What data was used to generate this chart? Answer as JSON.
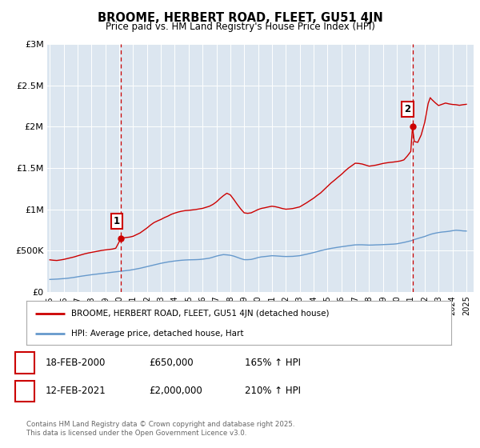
{
  "title": "BROOME, HERBERT ROAD, FLEET, GU51 4JN",
  "subtitle": "Price paid vs. HM Land Registry's House Price Index (HPI)",
  "background_color": "#ffffff",
  "plot_background": "#dce6f0",
  "grid_color": "#ffffff",
  "xlim": [
    1994.8,
    2025.5
  ],
  "ylim": [
    0,
    3000000
  ],
  "yticks": [
    0,
    500000,
    1000000,
    1500000,
    2000000,
    2500000,
    3000000
  ],
  "ytick_labels": [
    "£0",
    "£500K",
    "£1M",
    "£1.5M",
    "£2M",
    "£2.5M",
    "£3M"
  ],
  "xticks": [
    1995,
    1996,
    1997,
    1998,
    1999,
    2000,
    2001,
    2002,
    2003,
    2004,
    2005,
    2006,
    2007,
    2008,
    2009,
    2010,
    2011,
    2012,
    2013,
    2014,
    2015,
    2016,
    2017,
    2018,
    2019,
    2020,
    2021,
    2022,
    2023,
    2024,
    2025
  ],
  "red_line_color": "#cc0000",
  "blue_line_color": "#6699cc",
  "vline_color": "#cc0000",
  "marker1_x": 2000.13,
  "marker1_y": 650000,
  "marker2_x": 2021.12,
  "marker2_y": 2000000,
  "annotation1": "1",
  "annotation2": "2",
  "legend_label_red": "BROOME, HERBERT ROAD, FLEET, GU51 4JN (detached house)",
  "legend_label_blue": "HPI: Average price, detached house, Hart",
  "table_row1": [
    "1",
    "18-FEB-2000",
    "£650,000",
    "165% ↑ HPI"
  ],
  "table_row2": [
    "2",
    "12-FEB-2021",
    "£2,000,000",
    "210% ↑ HPI"
  ],
  "footer_text": "Contains HM Land Registry data © Crown copyright and database right 2025.\nThis data is licensed under the Open Government Licence v3.0.",
  "red_hpi_data": [
    [
      1995.0,
      390000
    ],
    [
      1995.25,
      385000
    ],
    [
      1995.5,
      382000
    ],
    [
      1995.75,
      388000
    ],
    [
      1996.0,
      395000
    ],
    [
      1996.25,
      405000
    ],
    [
      1996.5,
      415000
    ],
    [
      1996.75,
      425000
    ],
    [
      1997.0,
      438000
    ],
    [
      1997.25,
      450000
    ],
    [
      1997.5,
      462000
    ],
    [
      1997.75,
      472000
    ],
    [
      1998.0,
      480000
    ],
    [
      1998.25,
      488000
    ],
    [
      1998.5,
      496000
    ],
    [
      1998.75,
      504000
    ],
    [
      1999.0,
      510000
    ],
    [
      1999.25,
      515000
    ],
    [
      1999.5,
      520000
    ],
    [
      1999.75,
      530000
    ],
    [
      2000.13,
      650000
    ],
    [
      2000.5,
      660000
    ],
    [
      2000.75,
      665000
    ],
    [
      2001.0,
      675000
    ],
    [
      2001.25,
      695000
    ],
    [
      2001.5,
      715000
    ],
    [
      2001.75,
      745000
    ],
    [
      2002.0,
      775000
    ],
    [
      2002.25,
      810000
    ],
    [
      2002.5,
      840000
    ],
    [
      2002.75,
      860000
    ],
    [
      2003.0,
      878000
    ],
    [
      2003.25,
      900000
    ],
    [
      2003.5,
      918000
    ],
    [
      2003.75,
      940000
    ],
    [
      2004.0,
      955000
    ],
    [
      2004.25,
      968000
    ],
    [
      2004.5,
      978000
    ],
    [
      2004.75,
      985000
    ],
    [
      2005.0,
      988000
    ],
    [
      2005.25,
      993000
    ],
    [
      2005.5,
      998000
    ],
    [
      2005.75,
      1005000
    ],
    [
      2006.0,
      1012000
    ],
    [
      2006.25,
      1025000
    ],
    [
      2006.5,
      1038000
    ],
    [
      2006.75,
      1060000
    ],
    [
      2007.0,
      1090000
    ],
    [
      2007.25,
      1130000
    ],
    [
      2007.5,
      1165000
    ],
    [
      2007.75,
      1195000
    ],
    [
      2008.0,
      1175000
    ],
    [
      2008.25,
      1120000
    ],
    [
      2008.5,
      1060000
    ],
    [
      2008.75,
      1005000
    ],
    [
      2009.0,
      958000
    ],
    [
      2009.25,
      952000
    ],
    [
      2009.5,
      958000
    ],
    [
      2009.75,
      978000
    ],
    [
      2010.0,
      998000
    ],
    [
      2010.25,
      1012000
    ],
    [
      2010.5,
      1020000
    ],
    [
      2010.75,
      1030000
    ],
    [
      2011.0,
      1038000
    ],
    [
      2011.25,
      1032000
    ],
    [
      2011.5,
      1022000
    ],
    [
      2011.75,
      1010000
    ],
    [
      2012.0,
      1002000
    ],
    [
      2012.25,
      1005000
    ],
    [
      2012.5,
      1010000
    ],
    [
      2012.75,
      1020000
    ],
    [
      2013.0,
      1030000
    ],
    [
      2013.25,
      1055000
    ],
    [
      2013.5,
      1080000
    ],
    [
      2013.75,
      1108000
    ],
    [
      2014.0,
      1135000
    ],
    [
      2014.25,
      1168000
    ],
    [
      2014.5,
      1198000
    ],
    [
      2014.75,
      1238000
    ],
    [
      2015.0,
      1278000
    ],
    [
      2015.25,
      1318000
    ],
    [
      2015.5,
      1352000
    ],
    [
      2015.75,
      1388000
    ],
    [
      2016.0,
      1422000
    ],
    [
      2016.25,
      1462000
    ],
    [
      2016.5,
      1498000
    ],
    [
      2016.75,
      1528000
    ],
    [
      2017.0,
      1558000
    ],
    [
      2017.25,
      1555000
    ],
    [
      2017.5,
      1548000
    ],
    [
      2017.75,
      1535000
    ],
    [
      2018.0,
      1522000
    ],
    [
      2018.25,
      1528000
    ],
    [
      2018.5,
      1535000
    ],
    [
      2018.75,
      1545000
    ],
    [
      2019.0,
      1555000
    ],
    [
      2019.25,
      1562000
    ],
    [
      2019.5,
      1568000
    ],
    [
      2019.75,
      1572000
    ],
    [
      2020.0,
      1578000
    ],
    [
      2020.25,
      1585000
    ],
    [
      2020.5,
      1598000
    ],
    [
      2020.75,
      1645000
    ],
    [
      2021.0,
      1700000
    ],
    [
      2021.12,
      2000000
    ],
    [
      2021.25,
      1820000
    ],
    [
      2021.5,
      1810000
    ],
    [
      2021.75,
      1900000
    ],
    [
      2022.0,
      2050000
    ],
    [
      2022.25,
      2280000
    ],
    [
      2022.4,
      2350000
    ],
    [
      2022.5,
      2330000
    ],
    [
      2022.75,
      2290000
    ],
    [
      2023.0,
      2255000
    ],
    [
      2023.25,
      2270000
    ],
    [
      2023.5,
      2285000
    ],
    [
      2023.75,
      2275000
    ],
    [
      2024.0,
      2268000
    ],
    [
      2024.25,
      2265000
    ],
    [
      2024.5,
      2258000
    ],
    [
      2024.75,
      2265000
    ],
    [
      2025.0,
      2270000
    ]
  ],
  "blue_hpi_data": [
    [
      1995.0,
      153000
    ],
    [
      1995.25,
      155000
    ],
    [
      1995.5,
      157000
    ],
    [
      1995.75,
      160000
    ],
    [
      1996.0,
      163000
    ],
    [
      1996.25,
      167000
    ],
    [
      1996.5,
      172000
    ],
    [
      1996.75,
      178000
    ],
    [
      1997.0,
      185000
    ],
    [
      1997.25,
      192000
    ],
    [
      1997.5,
      198000
    ],
    [
      1997.75,
      204000
    ],
    [
      1998.0,
      210000
    ],
    [
      1998.25,
      215000
    ],
    [
      1998.5,
      220000
    ],
    [
      1998.75,
      225000
    ],
    [
      1999.0,
      230000
    ],
    [
      1999.25,
      235000
    ],
    [
      1999.5,
      240000
    ],
    [
      1999.75,
      245000
    ],
    [
      2000.0,
      250000
    ],
    [
      2000.25,
      255000
    ],
    [
      2000.5,
      260000
    ],
    [
      2000.75,
      265000
    ],
    [
      2001.0,
      272000
    ],
    [
      2001.25,
      280000
    ],
    [
      2001.5,
      288000
    ],
    [
      2001.75,
      298000
    ],
    [
      2002.0,
      308000
    ],
    [
      2002.25,
      318000
    ],
    [
      2002.5,
      328000
    ],
    [
      2002.75,
      338000
    ],
    [
      2003.0,
      348000
    ],
    [
      2003.25,
      356000
    ],
    [
      2003.5,
      364000
    ],
    [
      2003.75,
      370000
    ],
    [
      2004.0,
      376000
    ],
    [
      2004.25,
      381000
    ],
    [
      2004.5,
      385000
    ],
    [
      2004.75,
      388000
    ],
    [
      2005.0,
      390000
    ],
    [
      2005.25,
      391000
    ],
    [
      2005.5,
      392000
    ],
    [
      2005.75,
      394000
    ],
    [
      2006.0,
      398000
    ],
    [
      2006.25,
      404000
    ],
    [
      2006.5,
      410000
    ],
    [
      2006.75,
      422000
    ],
    [
      2007.0,
      435000
    ],
    [
      2007.25,
      445000
    ],
    [
      2007.5,
      453000
    ],
    [
      2007.75,
      450000
    ],
    [
      2008.0,
      445000
    ],
    [
      2008.25,
      435000
    ],
    [
      2008.5,
      420000
    ],
    [
      2008.75,
      405000
    ],
    [
      2009.0,
      392000
    ],
    [
      2009.25,
      392000
    ],
    [
      2009.5,
      395000
    ],
    [
      2009.75,
      405000
    ],
    [
      2010.0,
      418000
    ],
    [
      2010.25,
      426000
    ],
    [
      2010.5,
      430000
    ],
    [
      2010.75,
      435000
    ],
    [
      2011.0,
      440000
    ],
    [
      2011.25,
      438000
    ],
    [
      2011.5,
      435000
    ],
    [
      2011.75,
      432000
    ],
    [
      2012.0,
      430000
    ],
    [
      2012.25,
      431000
    ],
    [
      2012.5,
      432000
    ],
    [
      2012.75,
      436000
    ],
    [
      2013.0,
      440000
    ],
    [
      2013.25,
      449000
    ],
    [
      2013.5,
      458000
    ],
    [
      2013.75,
      468000
    ],
    [
      2014.0,
      478000
    ],
    [
      2014.25,
      489000
    ],
    [
      2014.5,
      500000
    ],
    [
      2014.75,
      510000
    ],
    [
      2015.0,
      520000
    ],
    [
      2015.25,
      528000
    ],
    [
      2015.5,
      535000
    ],
    [
      2015.75,
      542000
    ],
    [
      2016.0,
      548000
    ],
    [
      2016.25,
      554000
    ],
    [
      2016.5,
      560000
    ],
    [
      2016.75,
      566000
    ],
    [
      2017.0,
      571000
    ],
    [
      2017.25,
      572000
    ],
    [
      2017.5,
      572000
    ],
    [
      2017.75,
      570000
    ],
    [
      2018.0,
      568000
    ],
    [
      2018.25,
      569000
    ],
    [
      2018.5,
      571000
    ],
    [
      2018.75,
      572000
    ],
    [
      2019.0,
      574000
    ],
    [
      2019.25,
      576000
    ],
    [
      2019.5,
      578000
    ],
    [
      2019.75,
      580000
    ],
    [
      2020.0,
      584000
    ],
    [
      2020.25,
      592000
    ],
    [
      2020.5,
      600000
    ],
    [
      2020.75,
      610000
    ],
    [
      2021.0,
      620000
    ],
    [
      2021.25,
      635000
    ],
    [
      2021.5,
      648000
    ],
    [
      2021.75,
      660000
    ],
    [
      2022.0,
      672000
    ],
    [
      2022.25,
      688000
    ],
    [
      2022.5,
      702000
    ],
    [
      2022.75,
      712000
    ],
    [
      2023.0,
      720000
    ],
    [
      2023.25,
      726000
    ],
    [
      2023.5,
      730000
    ],
    [
      2023.75,
      735000
    ],
    [
      2024.0,
      742000
    ],
    [
      2024.25,
      748000
    ],
    [
      2024.5,
      745000
    ],
    [
      2024.75,
      740000
    ],
    [
      2025.0,
      738000
    ]
  ]
}
